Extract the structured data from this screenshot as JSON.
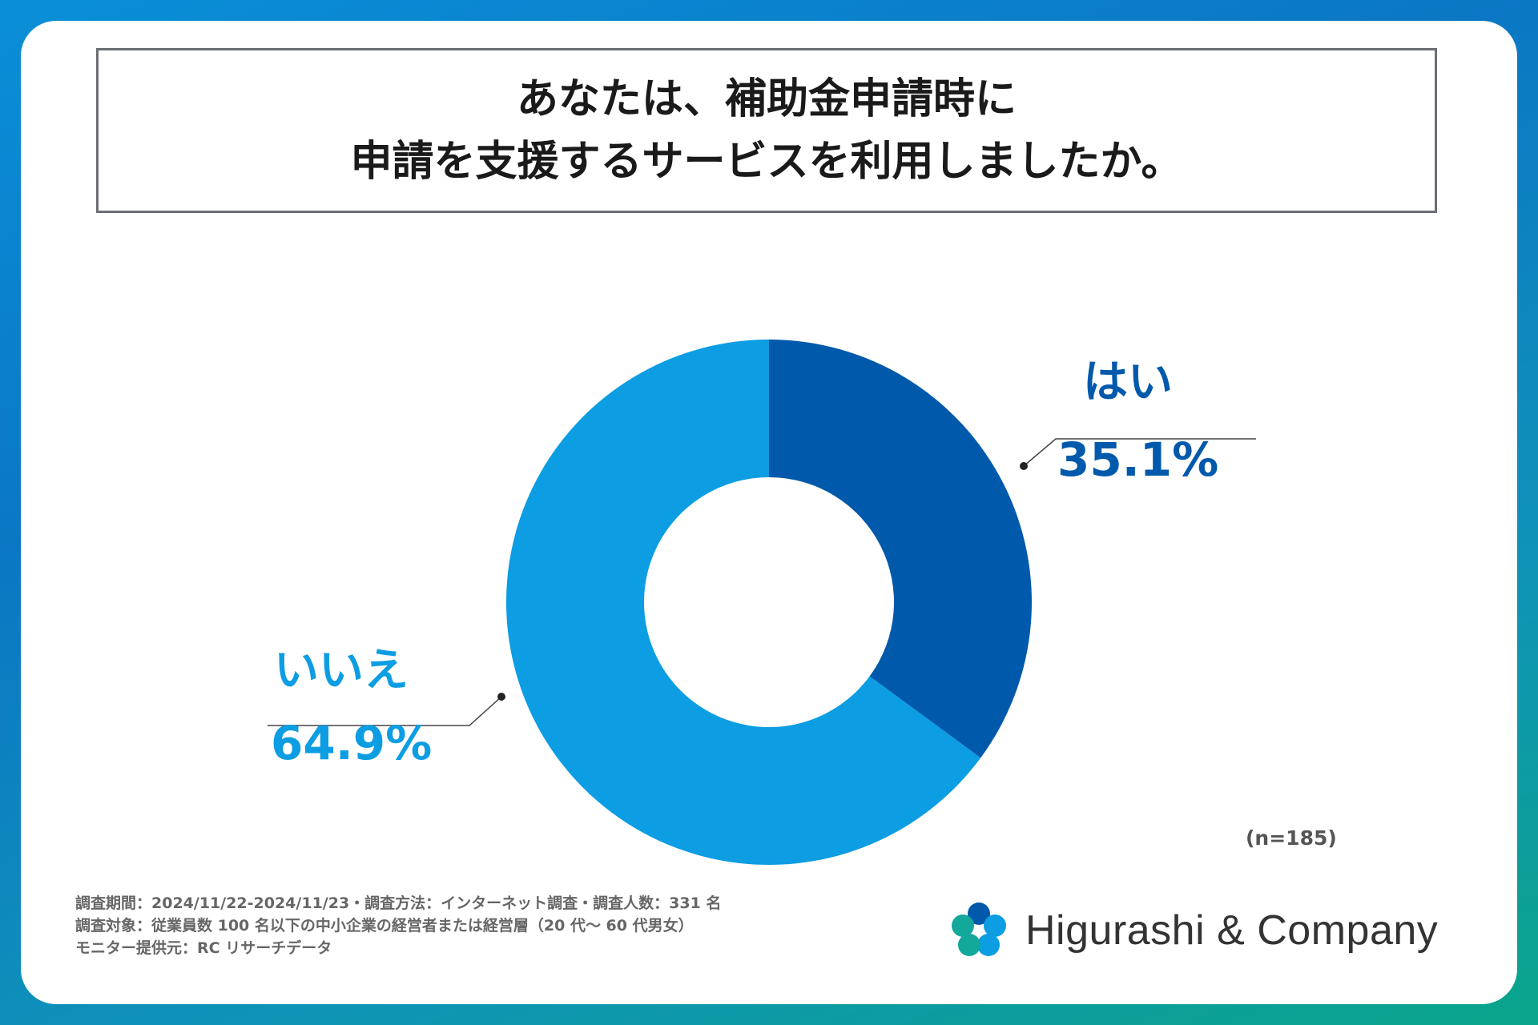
{
  "title": {
    "line1": "あなたは、補助金申請時に",
    "line2": "申請を支援するサービスを利用しましたか。"
  },
  "chart_data": {
    "type": "pie",
    "style": "donut",
    "slices": [
      {
        "label": "はい",
        "value": 35.1,
        "display": "35.1%",
        "color": "#0059aa"
      },
      {
        "label": "いいえ",
        "value": 64.9,
        "display": "64.9%",
        "color": "#0c9de3"
      }
    ],
    "sample_size": "(n=185)"
  },
  "notes": {
    "line1": "調査期間：2024/11/22-2024/11/23・調査方法：インターネット調査・調査人数：331 名",
    "line2": "調査対象：従業員数 100 名以下の中小企業の経営者または経営層（20 代〜 60 代男女）",
    "line3": "モニター提供元：RC リサーチデータ"
  },
  "logo": {
    "text": "Higurashi & Company",
    "icon": "flower-logo-icon",
    "colors": [
      "#0059aa",
      "#0c9de3",
      "#12a89a"
    ]
  },
  "colors": {
    "accent_dark": "#0059aa",
    "accent_light": "#0c9de3",
    "text": "#1a1a1a"
  }
}
